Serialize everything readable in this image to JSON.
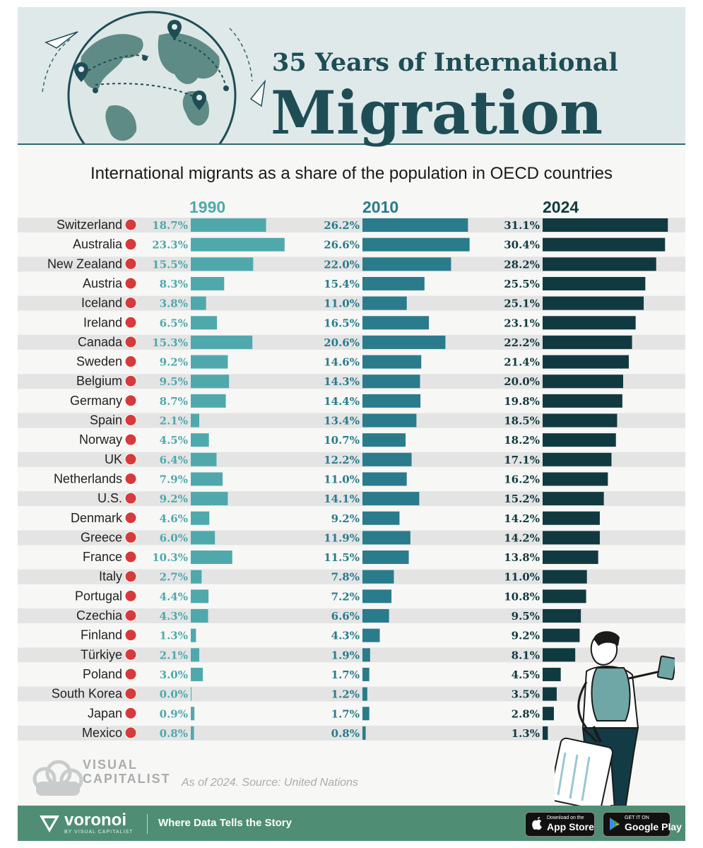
{
  "header": {
    "title_top": "35 Years of International",
    "title_main": "Migration",
    "subtitle": "International migrants as a share of the population in OECD countries"
  },
  "colors": {
    "col_1990": "#4fa9ac",
    "col_2010": "#2a7b8c",
    "col_2024": "#113a40",
    "row_stripe": "#e4e4e4",
    "footer": "#4f8e74"
  },
  "chart_data": {
    "type": "bar",
    "orientation": "horizontal",
    "title": "International migrants as a share of the population in OECD countries",
    "categories": [
      "Switzerland",
      "Australia",
      "New Zealand",
      "Austria",
      "Iceland",
      "Ireland",
      "Canada",
      "Sweden",
      "Belgium",
      "Germany",
      "Spain",
      "Norway",
      "UK",
      "Netherlands",
      "U.S.",
      "Denmark",
      "Greece",
      "France",
      "Italy",
      "Portugal",
      "Czechia",
      "Finland",
      "Türkiye",
      "Poland",
      "South Korea",
      "Japan",
      "Mexico"
    ],
    "flag_icons": [
      "flag-switzerland-icon",
      "flag-australia-icon",
      "flag-new-zealand-icon",
      "flag-austria-icon",
      "flag-iceland-icon",
      "flag-ireland-icon",
      "flag-canada-icon",
      "flag-sweden-icon",
      "flag-belgium-icon",
      "flag-germany-icon",
      "flag-spain-icon",
      "flag-norway-icon",
      "flag-uk-icon",
      "flag-netherlands-icon",
      "flag-us-icon",
      "flag-denmark-icon",
      "flag-greece-icon",
      "flag-france-icon",
      "flag-italy-icon",
      "flag-portugal-icon",
      "flag-czechia-icon",
      "flag-finland-icon",
      "flag-turkiye-icon",
      "flag-poland-icon",
      "flag-south-korea-icon",
      "flag-japan-icon",
      "flag-mexico-icon"
    ],
    "series": [
      {
        "name": "1990",
        "values": [
          18.7,
          23.3,
          15.5,
          8.3,
          3.8,
          6.5,
          15.3,
          9.2,
          9.5,
          8.7,
          2.1,
          4.5,
          6.4,
          7.9,
          9.2,
          4.6,
          6.0,
          10.3,
          2.7,
          4.4,
          4.3,
          1.3,
          2.1,
          3.0,
          0.0,
          0.9,
          0.8
        ],
        "labels": [
          "18.7%",
          "23.3%",
          "15.5%",
          "8.3%",
          "3.8%",
          "6.5%",
          "15.3%",
          "9.2%",
          "9.5%",
          "8.7%",
          "2.1%",
          "4.5%",
          "6.4%",
          "7.9%",
          "9.2%",
          "4.6%",
          "6.0%",
          "10.3%",
          "2.7%",
          "4.4%",
          "4.3%",
          "1.3%",
          "2.1%",
          "3.0%",
          "0.0%",
          "0.9%",
          "0.8%"
        ]
      },
      {
        "name": "2010",
        "values": [
          26.2,
          26.6,
          22.0,
          15.4,
          11.0,
          16.5,
          20.6,
          14.6,
          14.3,
          14.4,
          13.4,
          10.7,
          12.2,
          11.0,
          14.1,
          9.2,
          11.9,
          11.5,
          7.8,
          7.2,
          6.6,
          4.3,
          1.9,
          1.7,
          1.2,
          1.7,
          0.8
        ],
        "labels": [
          "26.2%",
          "26.6%",
          "22.0%",
          "15.4%",
          "11.0%",
          "16.5%",
          "20.6%",
          "14.6%",
          "14.3%",
          "14.4%",
          "13.4%",
          "10.7%",
          "12.2%",
          "11.0%",
          "14.1%",
          "9.2%",
          "11.9%",
          "11.5%",
          "7.8%",
          "7.2%",
          "6.6%",
          "4.3%",
          "1.9%",
          "1.7%",
          "1.2%",
          "1.7%",
          "0.8%"
        ]
      },
      {
        "name": "2024",
        "values": [
          31.1,
          30.4,
          28.2,
          25.5,
          25.1,
          23.1,
          22.2,
          21.4,
          20.0,
          19.8,
          18.5,
          18.2,
          17.1,
          16.2,
          15.2,
          14.2,
          14.2,
          13.8,
          11.0,
          10.8,
          9.5,
          9.2,
          8.1,
          4.5,
          3.5,
          2.8,
          1.3
        ],
        "labels": [
          "31.1%",
          "30.4%",
          "28.2%",
          "25.5%",
          "25.1%",
          "23.1%",
          "22.2%",
          "21.4%",
          "20.0%",
          "19.8%",
          "18.5%",
          "18.2%",
          "17.1%",
          "16.2%",
          "15.2%",
          "14.2%",
          "14.2%",
          "13.8%",
          "11.0%",
          "10.8%",
          "9.5%",
          "9.2%",
          "8.1%",
          "4.5%",
          "3.5%",
          "2.8%",
          "1.3%"
        ]
      }
    ],
    "xlabel": "",
    "ylabel": "",
    "grid": false,
    "legend": "column headers at top"
  },
  "credit": {
    "brand_line1": "VISUAL",
    "brand_line2": "CAPITALIST",
    "source": "As of 2024. Source: United Nations"
  },
  "footer": {
    "brand": "voronoi",
    "brand_sub": "BY VISUAL CAPITALIST",
    "tagline": "Where Data Tells the Story",
    "appstore_small": "Download on the",
    "appstore_big": "App Store",
    "googleplay_small": "GET IT ON",
    "googleplay_big": "Google Play"
  }
}
